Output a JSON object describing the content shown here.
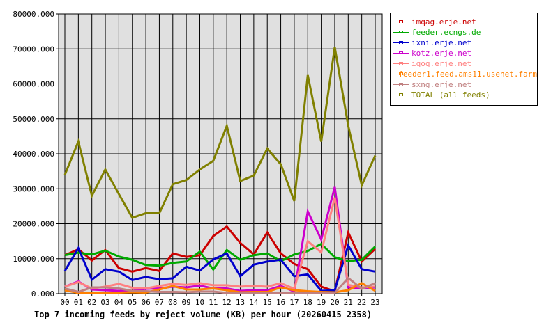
{
  "chart_data": {
    "type": "line",
    "title": "Top 7 incoming feeds by reject volume (KB) per hour (20260415 2358)",
    "xlabel": "",
    "ylabel": "",
    "ylim": [
      0,
      80000
    ],
    "yticks": [
      "0.000",
      "10000.000",
      "20000.000",
      "30000.000",
      "40000.000",
      "50000.000",
      "60000.000",
      "70000.000",
      "80000.000"
    ],
    "categories": [
      "00",
      "01",
      "02",
      "03",
      "04",
      "05",
      "06",
      "07",
      "08",
      "09",
      "10",
      "11",
      "12",
      "13",
      "14",
      "15",
      "16",
      "17",
      "18",
      "19",
      "20",
      "21",
      "22",
      "23"
    ],
    "grid": true,
    "legend_placement": "right",
    "series": [
      {
        "name": "imqag.erje.net",
        "color": "#cc0000",
        "values": [
          11000,
          12700,
          9500,
          12500,
          7300,
          6300,
          7300,
          6500,
          11500,
          10500,
          11000,
          16500,
          19200,
          14500,
          11200,
          17500,
          11500,
          8500,
          7000,
          2000,
          700,
          17500,
          9200,
          12800
        ]
      },
      {
        "name": "feeder.ecngs.de",
        "color": "#00aa00",
        "values": [
          11000,
          11700,
          11200,
          12300,
          10600,
          9700,
          8200,
          8000,
          8800,
          9200,
          12000,
          6900,
          12500,
          9700,
          11000,
          11500,
          9300,
          11200,
          12200,
          14200,
          10400,
          9300,
          9700,
          13500
        ]
      },
      {
        "name": "ixni.erje.net",
        "color": "#0000cc",
        "values": [
          6500,
          13000,
          4000,
          7000,
          6300,
          3900,
          4800,
          4100,
          4400,
          7700,
          6600,
          9800,
          11500,
          5000,
          8300,
          9200,
          9700,
          5000,
          5500,
          800,
          1000,
          13800,
          7000,
          6300
        ]
      },
      {
        "name": "kotz.erje.net",
        "color": "#cc00cc",
        "values": [
          2000,
          3500,
          1200,
          1000,
          800,
          800,
          1400,
          1500,
          2000,
          1800,
          2300,
          1500,
          1500,
          800,
          1000,
          1000,
          2200,
          600,
          23500,
          15500,
          30500,
          1800,
          1500,
          1800
        ]
      },
      {
        "name": "iqoq.erje.net",
        "color": "#ff8080",
        "values": [
          2000,
          3300,
          1500,
          2000,
          2800,
          1700,
          1500,
          2200,
          2800,
          2500,
          3000,
          2400,
          2400,
          2000,
          2200,
          2000,
          3000,
          1400,
          15000,
          11800,
          27500,
          2500,
          1800,
          2000
        ]
      },
      {
        "name": "feeder1.feed.ams11.usenet.farm",
        "color": "#ff8000",
        "values": [
          1000,
          200,
          100,
          100,
          300,
          400,
          300,
          1200,
          2200,
          1200,
          1200,
          1500,
          1000,
          400,
          500,
          500,
          1800,
          1000,
          700,
          500,
          400,
          1000,
          3000,
          800
        ]
      },
      {
        "name": "sxng.erje.net",
        "color": "#c08080",
        "values": [
          1500,
          500,
          1800,
          1800,
          1500,
          800,
          700,
          500,
          500,
          400,
          600,
          600,
          200,
          200,
          200,
          200,
          200,
          200,
          200,
          200,
          200,
          4500,
          1400,
          3000
        ]
      },
      {
        "name": "TOTAL (all feeds)",
        "color": "#808000",
        "values": [
          34000,
          43500,
          28000,
          35500,
          28500,
          21700,
          23000,
          23000,
          31300,
          32500,
          35500,
          38000,
          48000,
          32200,
          33800,
          41500,
          37000,
          26500,
          62500,
          43500,
          70500,
          48000,
          31000,
          39500
        ]
      }
    ]
  }
}
